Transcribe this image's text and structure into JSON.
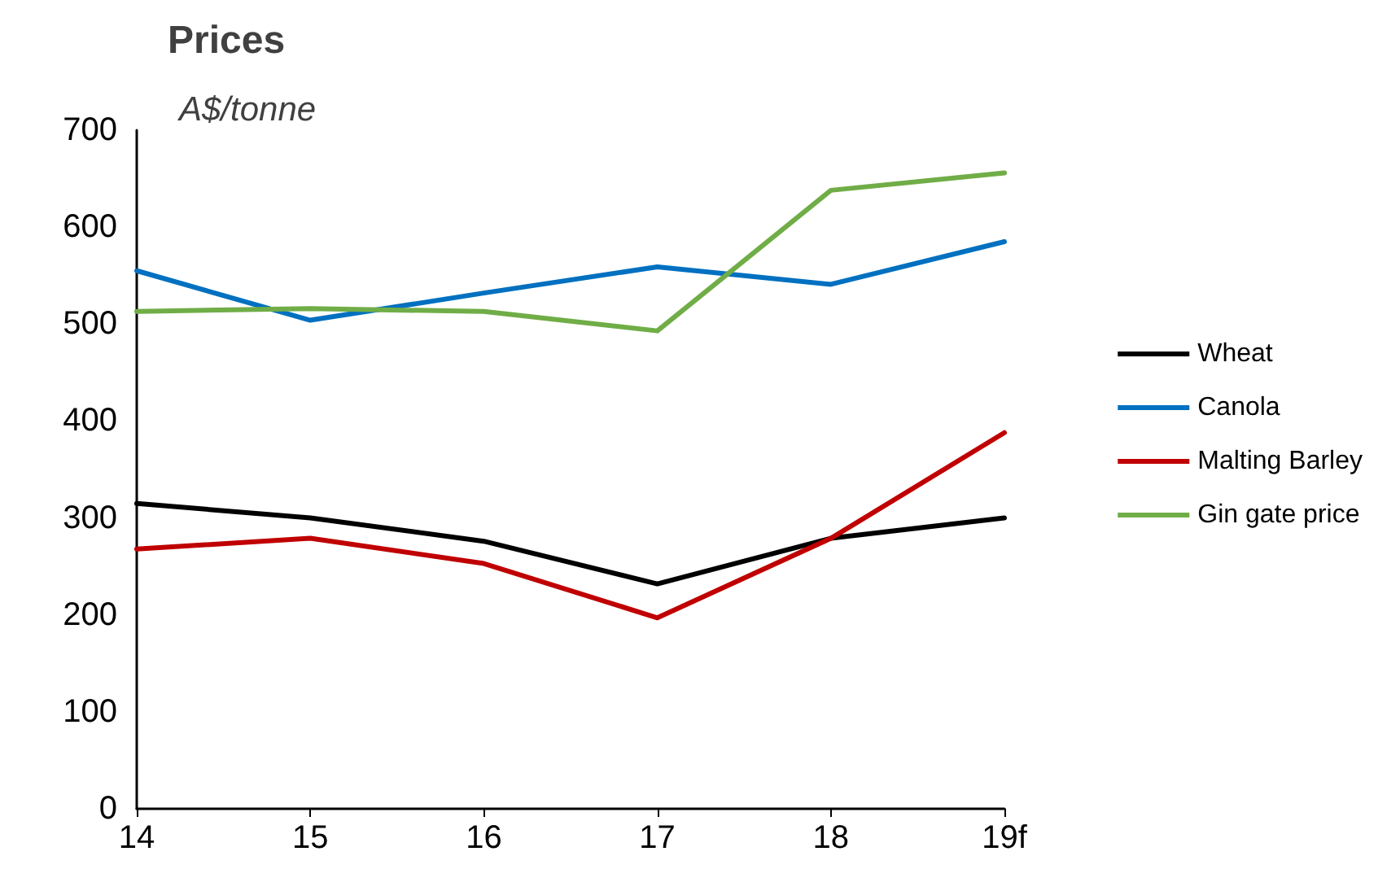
{
  "chart_data": {
    "type": "line",
    "title": "Prices",
    "subtitle": "A$/tonne",
    "categories": [
      "14",
      "15",
      "16",
      "17",
      "18",
      "19f"
    ],
    "series": [
      {
        "name": "Wheat",
        "color": "#000000",
        "values": [
          315,
          300,
          276,
          232,
          279,
          300
        ]
      },
      {
        "name": "Canola",
        "color": "#0070c0",
        "values": [
          555,
          504,
          532,
          559,
          541,
          585
        ]
      },
      {
        "name": "Malting Barley",
        "color": "#c00000",
        "values": [
          268,
          279,
          253,
          197,
          279,
          388
        ]
      },
      {
        "name": "Gin gate price",
        "color": "#70ad47",
        "values": [
          513,
          516,
          513,
          493,
          638,
          656
        ]
      }
    ],
    "ylim": [
      0,
      700
    ],
    "yticks": [
      0,
      100,
      200,
      300,
      400,
      500,
      600,
      700
    ],
    "grid": false,
    "legend": "right",
    "marker": "none",
    "line_style": "solid"
  }
}
